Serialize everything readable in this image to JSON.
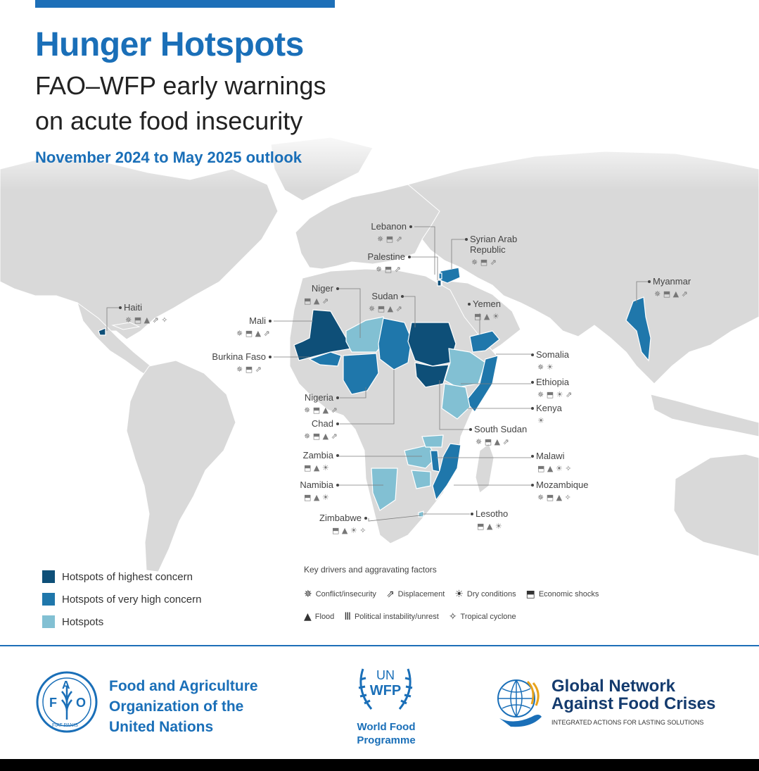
{
  "header": {
    "title": "Hunger Hotspots",
    "subtitle_line1": "FAO–WFP early warnings",
    "subtitle_line2": "on acute food insecurity",
    "outlook": "November 2024 to May 2025 outlook"
  },
  "colors": {
    "highest": "#0e4f78",
    "very_high": "#1f77ab",
    "hotspot": "#82c0d3",
    "land": "#d9d9d9",
    "brand_blue": "#1a6fb8"
  },
  "countries": [
    {
      "name": "Haiti",
      "concern": "highest",
      "drivers": [
        "conflict",
        "economic",
        "flood",
        "displacement",
        "cyclone"
      ]
    },
    {
      "name": "Mali",
      "concern": "highest",
      "drivers": [
        "conflict",
        "economic",
        "flood",
        "displacement"
      ]
    },
    {
      "name": "Burkina Faso",
      "concern": "very_high",
      "drivers": [
        "conflict",
        "economic",
        "displacement"
      ]
    },
    {
      "name": "Niger",
      "concern": "hotspot",
      "drivers": [
        "economic",
        "flood",
        "displacement"
      ]
    },
    {
      "name": "Nigeria",
      "concern": "very_high",
      "drivers": [
        "conflict",
        "economic",
        "flood",
        "displacement"
      ]
    },
    {
      "name": "Chad",
      "concern": "very_high",
      "drivers": [
        "conflict",
        "economic",
        "flood",
        "displacement"
      ]
    },
    {
      "name": "Sudan",
      "concern": "highest",
      "drivers": [
        "conflict",
        "economic",
        "flood",
        "displacement"
      ]
    },
    {
      "name": "Lebanon",
      "concern": "very_high",
      "drivers": [
        "conflict",
        "economic",
        "displacement"
      ]
    },
    {
      "name": "Palestine",
      "concern": "highest",
      "drivers": [
        "conflict",
        "economic",
        "displacement"
      ]
    },
    {
      "name": "Syrian Arab Republic",
      "concern": "very_high",
      "drivers": [
        "conflict",
        "economic",
        "displacement"
      ]
    },
    {
      "name": "Yemen",
      "concern": "very_high",
      "drivers": [
        "economic",
        "flood",
        "dry"
      ]
    },
    {
      "name": "Myanmar",
      "concern": "very_high",
      "drivers": [
        "conflict",
        "economic",
        "flood",
        "displacement"
      ]
    },
    {
      "name": "Somalia",
      "concern": "very_high",
      "drivers": [
        "conflict",
        "dry"
      ]
    },
    {
      "name": "Ethiopia",
      "concern": "hotspot",
      "drivers": [
        "conflict",
        "economic",
        "dry",
        "displacement"
      ]
    },
    {
      "name": "Kenya",
      "concern": "hotspot",
      "drivers": [
        "dry"
      ]
    },
    {
      "name": "South Sudan",
      "concern": "highest",
      "drivers": [
        "conflict",
        "economic",
        "flood",
        "displacement"
      ]
    },
    {
      "name": "Malawi",
      "concern": "very_high",
      "drivers": [
        "economic",
        "flood",
        "dry",
        "cyclone"
      ]
    },
    {
      "name": "Mozambique",
      "concern": "very_high",
      "drivers": [
        "conflict",
        "economic",
        "flood",
        "cyclone"
      ]
    },
    {
      "name": "Zambia",
      "concern": "hotspot",
      "drivers": [
        "economic",
        "flood",
        "dry"
      ]
    },
    {
      "name": "Namibia",
      "concern": "hotspot",
      "drivers": [
        "economic",
        "flood",
        "dry"
      ]
    },
    {
      "name": "Zimbabwe",
      "concern": "hotspot",
      "drivers": [
        "economic",
        "flood",
        "dry",
        "cyclone"
      ]
    },
    {
      "name": "Lesotho",
      "concern": "hotspot",
      "drivers": [
        "economic",
        "flood",
        "dry"
      ]
    }
  ],
  "icons": {
    "conflict": "✵",
    "displacement": "⇗",
    "dry": "☀",
    "economic": "⬒",
    "flood": "▲",
    "political": "Ⅲ",
    "cyclone": "✧"
  },
  "legend": {
    "highest": "Hotspots of highest concern",
    "very_high": "Hotspots of very high concern",
    "hotspot": "Hotspots"
  },
  "drivers_legend": {
    "heading": "Key drivers and aggravating factors",
    "conflict": "Conflict/insecurity",
    "displacement": "Displacement",
    "dry": "Dry conditions",
    "economic": "Economic shocks",
    "flood": "Flood",
    "political": "Political instability/unrest",
    "cyclone": "Tropical cyclone"
  },
  "footer": {
    "fao_line1": "Food and Agriculture",
    "fao_line2": "Organization of the",
    "fao_line3": "United Nations",
    "fao_logo_text": "FAO",
    "fao_logo_motto": "FIAT PANIS",
    "wfp_logo_un": "UN",
    "wfp_logo_wfp": "WFP",
    "wfp_line1": "World Food",
    "wfp_line2": "Programme",
    "gn_line1": "Global Network",
    "gn_line2": "Against Food Crises",
    "gn_tagline": "INTEGRATED ACTIONS FOR LASTING SOLUTIONS"
  }
}
